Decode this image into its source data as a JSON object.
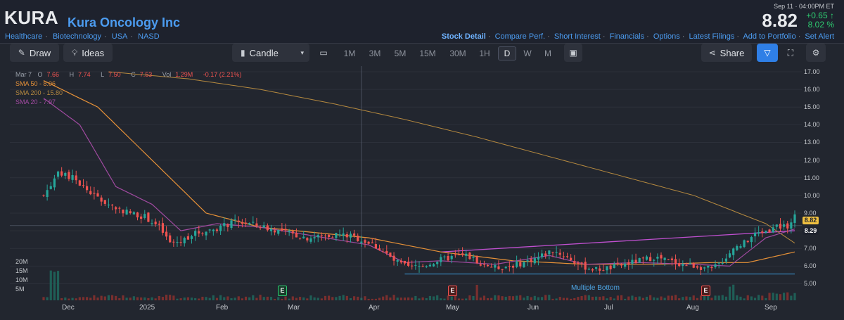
{
  "header": {
    "ticker": "KURA",
    "company": "Kura Oncology Inc",
    "sectors": [
      "Healthcare",
      "Biotechnology",
      "USA",
      "NASD"
    ],
    "date_time": "Sep 11  ·  04:00PM ET",
    "price": "8.82",
    "change": "+0.65",
    "change_pct": "8.02 %",
    "change_arrow": "↑",
    "nav": [
      "Stock Detail",
      "Compare Perf.",
      "Short Interest",
      "Financials",
      "Options",
      "Latest Filings",
      "Add to Portfolio",
      "Set Alert"
    ]
  },
  "toolbar": {
    "draw": "Draw",
    "ideas": "Ideas",
    "chart_type": "Candle",
    "timeframes": [
      "1M",
      "3M",
      "5M",
      "15M",
      "30M",
      "1H",
      "D",
      "W",
      "M"
    ],
    "selected_timeframe": "D",
    "share": "Share"
  },
  "legend": {
    "date": "Mar 7",
    "o_label": "O",
    "o": "7.66",
    "h_label": "H",
    "h": "7.74",
    "l_label": "L",
    "l": "7.50",
    "c_label": "C",
    "c": "7.53",
    "vol_label": "Vol",
    "vol": "1.29M",
    "chg": "-0.17 (2.21%)",
    "sma50": "SMA 50 - 8.06",
    "sma200": "SMA 200 - 15.80",
    "sma20": "SMA 20 - 7.97"
  },
  "colors": {
    "up": "#26a69a",
    "down": "#ef5350",
    "sma50": "#e69138",
    "sma200": "#b5893f",
    "sma20": "#a04aa0",
    "trendline": "#c050d0",
    "support": "#3d9bd8",
    "accent": "#4c9cf0"
  },
  "chart_data": {
    "type": "candlestick",
    "y_axis_labels": [
      "17.00",
      "16.00",
      "15.00",
      "14.00",
      "13.00",
      "12.00",
      "11.00",
      "10.00",
      "9.00",
      "8.00",
      "7.00",
      "6.00",
      "5.00"
    ],
    "ylim": [
      4.5,
      17
    ],
    "x_axis_labels": [
      "Dec",
      "2025",
      "Feb",
      "Mar",
      "Apr",
      "May",
      "Jun",
      "Jul",
      "Aug",
      "Sep"
    ],
    "volume_axis_labels": [
      "20M",
      "15M",
      "10M",
      "5M"
    ],
    "last_price_tag": "8.82",
    "crosshair_tag": "8.29",
    "pattern_label": "Multiple Bottom",
    "earnings_markers": [
      {
        "label": "E",
        "type": "green",
        "month": "Feb"
      },
      {
        "label": "E",
        "type": "red",
        "month": "May"
      },
      {
        "label": "E",
        "type": "red",
        "month": "Aug"
      }
    ],
    "close_path": [
      [
        0,
        10.0
      ],
      [
        4,
        11.2
      ],
      [
        8,
        11.0
      ],
      [
        12,
        10.3
      ],
      [
        16,
        9.7
      ],
      [
        20,
        9.3
      ],
      [
        24,
        9.0
      ],
      [
        28,
        8.8
      ],
      [
        32,
        8.2
      ],
      [
        35,
        7.3
      ],
      [
        38,
        7.4
      ],
      [
        41,
        7.8
      ],
      [
        45,
        8.0
      ],
      [
        49,
        8.2
      ],
      [
        53,
        8.5
      ],
      [
        57,
        8.4
      ],
      [
        61,
        8.2
      ],
      [
        65,
        8.0
      ],
      [
        69,
        7.8
      ],
      [
        73,
        7.6
      ],
      [
        77,
        7.7
      ],
      [
        81,
        7.8
      ],
      [
        85,
        7.7
      ],
      [
        89,
        7.4
      ],
      [
        93,
        7.0
      ],
      [
        97,
        6.3
      ],
      [
        101,
        5.9
      ],
      [
        105,
        6.0
      ],
      [
        109,
        6.3
      ],
      [
        113,
        6.5
      ],
      [
        117,
        6.6
      ],
      [
        121,
        6.2
      ],
      [
        125,
        5.9
      ],
      [
        129,
        6.0
      ],
      [
        133,
        6.2
      ],
      [
        137,
        6.5
      ],
      [
        141,
        6.9
      ],
      [
        145,
        6.5
      ],
      [
        149,
        6.0
      ],
      [
        153,
        5.8
      ],
      [
        157,
        5.9
      ],
      [
        161,
        6.1
      ],
      [
        165,
        6.3
      ],
      [
        169,
        6.5
      ],
      [
        173,
        6.3
      ],
      [
        177,
        6.1
      ],
      [
        181,
        6.0
      ],
      [
        185,
        5.8
      ],
      [
        188,
        6.3
      ],
      [
        191,
        7.0
      ],
      [
        194,
        7.3
      ],
      [
        197,
        7.8
      ],
      [
        200,
        8.0
      ],
      [
        203,
        8.2
      ],
      [
        206,
        8.3
      ],
      [
        208,
        8.82
      ]
    ],
    "sma200_path": [
      [
        18,
        17.0
      ],
      [
        40,
        16.6
      ],
      [
        60,
        16.0
      ],
      [
        80,
        15.2
      ],
      [
        100,
        14.3
      ],
      [
        120,
        13.3
      ],
      [
        140,
        12.2
      ],
      [
        160,
        11.1
      ],
      [
        180,
        10.0
      ],
      [
        200,
        8.4
      ],
      [
        208,
        7.3
      ]
    ],
    "sma50_path": [
      [
        0,
        16.5
      ],
      [
        15,
        15.0
      ],
      [
        30,
        12.0
      ],
      [
        45,
        9.0
      ],
      [
        60,
        8.2
      ],
      [
        75,
        7.9
      ],
      [
        90,
        7.6
      ],
      [
        110,
        6.8
      ],
      [
        130,
        6.3
      ],
      [
        150,
        6.1
      ],
      [
        170,
        6.1
      ],
      [
        185,
        6.2
      ],
      [
        195,
        6.2
      ],
      [
        208,
        6.8
      ]
    ],
    "sma20_path": [
      [
        0,
        15.5
      ],
      [
        10,
        14.0
      ],
      [
        20,
        10.5
      ],
      [
        30,
        9.5
      ],
      [
        38,
        8.0
      ],
      [
        48,
        8.4
      ],
      [
        60,
        8.2
      ],
      [
        75,
        7.7
      ],
      [
        90,
        7.2
      ],
      [
        100,
        6.2
      ],
      [
        110,
        6.3
      ],
      [
        125,
        6.1
      ],
      [
        140,
        6.6
      ],
      [
        150,
        6.1
      ],
      [
        165,
        6.2
      ],
      [
        180,
        6.1
      ],
      [
        190,
        6.0
      ],
      [
        200,
        7.6
      ],
      [
        208,
        8.1
      ]
    ],
    "trendline": [
      [
        110,
        6.8
      ],
      [
        208,
        8.0
      ]
    ],
    "support_level": 5.55
  }
}
